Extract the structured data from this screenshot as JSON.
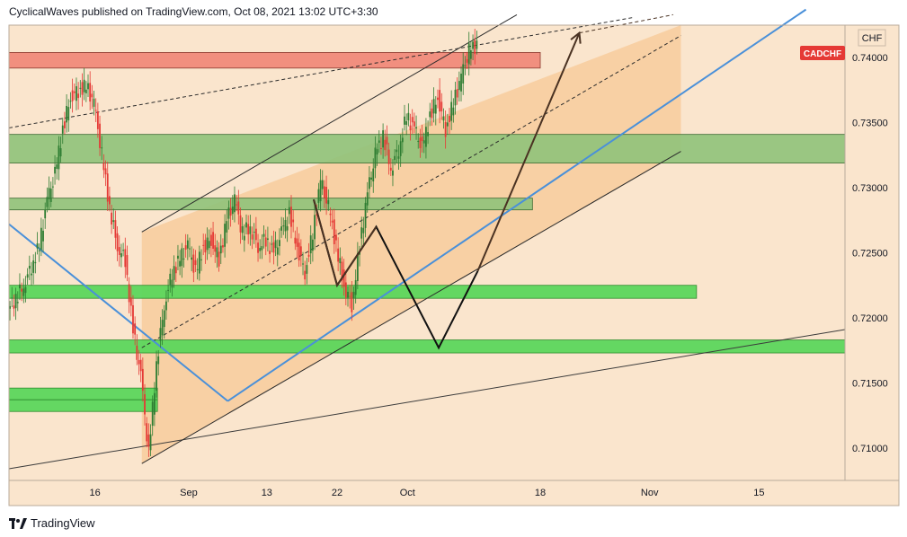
{
  "header": {
    "publish_line": "CyclicalWaves published on TradingView.com, Oct 08, 2021 13:02 UTC+3:30"
  },
  "footer": {
    "brand": "TradingView",
    "logo_icon": "tradingview-logo-icon"
  },
  "colors": {
    "chart_bg": "#fae5cd",
    "channel_fill": "#f7c896",
    "up_candle": "#2e7d32",
    "down_candle": "#e53935",
    "blue_line": "#4a90d9",
    "ticker_badge": "#e53935",
    "resistance_zone": "#f08a7a",
    "support_zone_dark": "#8fc27a",
    "support_zone_light": "#5cd65c"
  },
  "chart_data": {
    "type": "line",
    "symbol": "CADCHF",
    "currency": "CHF",
    "y_ticks": [
      0.74,
      0.735,
      0.73,
      0.725,
      0.72,
      0.715,
      0.71
    ],
    "ylim": [
      0.7075,
      0.7425
    ],
    "x_ticks": [
      {
        "label": "16",
        "day": 11
      },
      {
        "label": "Sep",
        "day": 23
      },
      {
        "label": "13",
        "day": 33
      },
      {
        "label": "22",
        "day": 42
      },
      {
        "label": "Oct",
        "day": 51
      },
      {
        "label": "18",
        "day": 68
      },
      {
        "label": "Nov",
        "day": 82
      },
      {
        "label": "15",
        "day": 96
      }
    ],
    "xlim": [
      0,
      107
    ],
    "series": [
      {
        "values": [
          {
            "day": 0,
            "price": 0.7215
          },
          {
            "day": 1,
            "price": 0.7225
          },
          {
            "day": 2,
            "price": 0.724
          },
          {
            "day": 3,
            "price": 0.7255
          },
          {
            "day": 4,
            "price": 0.729
          },
          {
            "day": 5,
            "price": 0.731
          },
          {
            "day": 6,
            "price": 0.7345
          },
          {
            "day": 7,
            "price": 0.737
          },
          {
            "day": 8,
            "price": 0.7375
          },
          {
            "day": 9,
            "price": 0.7378
          },
          {
            "day": 10,
            "price": 0.7365
          },
          {
            "day": 11,
            "price": 0.7325
          },
          {
            "day": 12,
            "price": 0.7285
          },
          {
            "day": 13,
            "price": 0.7255
          },
          {
            "day": 14,
            "price": 0.7245
          },
          {
            "day": 15,
            "price": 0.719
          },
          {
            "day": 16,
            "price": 0.7155
          },
          {
            "day": 17,
            "price": 0.7095
          },
          {
            "day": 18,
            "price": 0.7165
          },
          {
            "day": 19,
            "price": 0.721
          },
          {
            "day": 20,
            "price": 0.7235
          },
          {
            "day": 21,
            "price": 0.7245
          },
          {
            "day": 22,
            "price": 0.7255
          },
          {
            "day": 23,
            "price": 0.7235
          },
          {
            "day": 24,
            "price": 0.7255
          },
          {
            "day": 25,
            "price": 0.726
          },
          {
            "day": 26,
            "price": 0.7245
          },
          {
            "day": 27,
            "price": 0.7275
          },
          {
            "day": 28,
            "price": 0.729
          },
          {
            "day": 29,
            "price": 0.7265
          },
          {
            "day": 30,
            "price": 0.727
          },
          {
            "day": 31,
            "price": 0.7255
          },
          {
            "day": 32,
            "price": 0.726
          },
          {
            "day": 33,
            "price": 0.725
          },
          {
            "day": 34,
            "price": 0.7265
          },
          {
            "day": 35,
            "price": 0.728
          },
          {
            "day": 36,
            "price": 0.7255
          },
          {
            "day": 37,
            "price": 0.7235
          },
          {
            "day": 38,
            "price": 0.7265
          },
          {
            "day": 39,
            "price": 0.7305
          },
          {
            "day": 40,
            "price": 0.7285
          },
          {
            "day": 41,
            "price": 0.7255
          },
          {
            "day": 42,
            "price": 0.7225
          },
          {
            "day": 43,
            "price": 0.721
          },
          {
            "day": 44,
            "price": 0.7255
          },
          {
            "day": 45,
            "price": 0.7295
          },
          {
            "day": 46,
            "price": 0.7325
          },
          {
            "day": 47,
            "price": 0.734
          },
          {
            "day": 48,
            "price": 0.7315
          },
          {
            "day": 49,
            "price": 0.733
          },
          {
            "day": 50,
            "price": 0.7355
          },
          {
            "day": 51,
            "price": 0.7345
          },
          {
            "day": 52,
            "price": 0.733
          },
          {
            "day": 53,
            "price": 0.7355
          },
          {
            "day": 54,
            "price": 0.737
          },
          {
            "day": 55,
            "price": 0.7345
          },
          {
            "day": 56,
            "price": 0.7365
          },
          {
            "day": 57,
            "price": 0.7385
          },
          {
            "day": 58,
            "price": 0.7405
          },
          {
            "day": 59,
            "price": 0.741
          }
        ]
      }
    ],
    "zones": [
      {
        "kind": "resistance",
        "from_day": 0,
        "to_day": 68,
        "low": 0.7392,
        "high": 0.7404
      },
      {
        "kind": "support-dark",
        "from_day": 0,
        "to_day": 107,
        "low": 0.7319,
        "high": 0.7341
      },
      {
        "kind": "support-dark",
        "from_day": 0,
        "to_day": 67,
        "low": 0.7283,
        "high": 0.7292
      },
      {
        "kind": "support-light",
        "from_day": 0,
        "to_day": 88,
        "low": 0.7215,
        "high": 0.7225
      },
      {
        "kind": "support-light",
        "from_day": 0,
        "to_day": 107,
        "low": 0.7173,
        "high": 0.7183
      },
      {
        "kind": "support-light",
        "from_day": 0,
        "to_day": 19,
        "low": 0.7137,
        "high": 0.7146
      },
      {
        "kind": "support-light",
        "from_day": 0,
        "to_day": 19,
        "low": 0.7128,
        "high": 0.7137
      }
    ],
    "channel_upper": [
      {
        "day": 17,
        "price": 0.7266
      },
      {
        "day": 65,
        "price": 0.7433
      }
    ],
    "channel_lower": [
      {
        "day": 17,
        "price": 0.7088
      },
      {
        "day": 86,
        "price": 0.7328
      }
    ],
    "channel_mid": [
      {
        "day": 17,
        "price": 0.7177
      },
      {
        "day": 86,
        "price": 0.7417
      }
    ],
    "long_dashed": [
      {
        "day": 0,
        "price": 0.7346
      },
      {
        "day": 80,
        "price": 0.7431
      }
    ],
    "blue_down": [
      {
        "day": 0,
        "price": 0.7272
      },
      {
        "day": 28,
        "price": 0.7136
      }
    ],
    "blue_up": [
      {
        "day": 28,
        "price": 0.7136
      },
      {
        "day": 102,
        "price": 0.7437
      }
    ],
    "long_support": [
      {
        "day": 0,
        "price": 0.7084
      },
      {
        "day": 107,
        "price": 0.7191
      }
    ],
    "projection_zigzag": [
      {
        "day": 39,
        "price": 0.7291
      },
      {
        "day": 42,
        "price": 0.7225
      },
      {
        "day": 47,
        "price": 0.727
      },
      {
        "day": 55,
        "price": 0.7177
      },
      {
        "day": 60,
        "price": 0.7236
      }
    ],
    "projection_arrow": [
      {
        "day": 60,
        "price": 0.7236
      },
      {
        "day": 73,
        "price": 0.7419
      }
    ],
    "projection_arrow_dashed": [
      {
        "day": 73,
        "price": 0.7419
      },
      {
        "day": 85,
        "price": 0.7433
      }
    ]
  }
}
